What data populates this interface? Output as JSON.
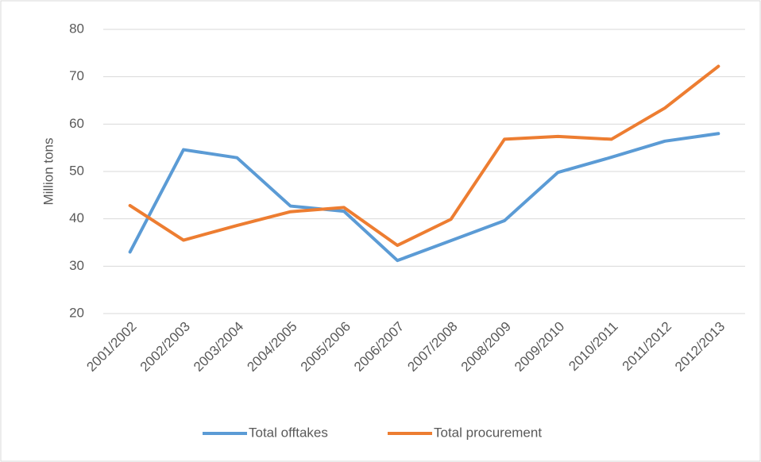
{
  "chart_data": {
    "type": "line",
    "y_label": "Million tons",
    "categories": [
      "2001/2002",
      "2002/2003",
      "2003/2004",
      "2004/2005",
      "2005/2006",
      "2006/2007",
      "2007/2008",
      "2008/2009",
      "2009/2010",
      "2010/2011",
      "2011/2012",
      "2012/2013"
    ],
    "series": [
      {
        "name": "Total offtakes",
        "color": "#5b9bd5",
        "values": [
          33.0,
          54.6,
          52.9,
          42.7,
          41.6,
          31.2,
          35.4,
          39.6,
          49.8,
          53.0,
          56.4,
          58.0
        ]
      },
      {
        "name": "Total procurement",
        "color": "#ed7d31",
        "values": [
          42.8,
          35.5,
          38.6,
          41.5,
          42.4,
          34.4,
          39.9,
          56.8,
          57.4,
          56.8,
          63.4,
          72.2
        ]
      }
    ],
    "ylim": [
      20,
      80
    ],
    "yticks": [
      20,
      30,
      40,
      50,
      60,
      70,
      80
    ],
    "grid": true,
    "legend": "bottom"
  }
}
